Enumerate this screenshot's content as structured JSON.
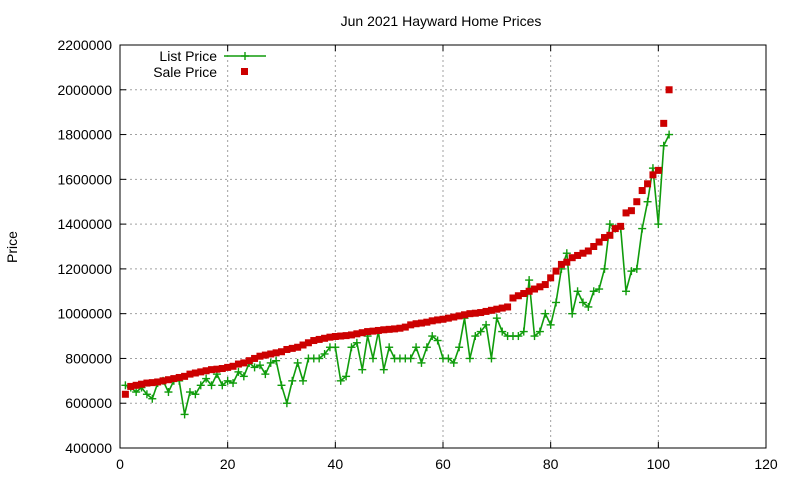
{
  "chart_data": {
    "type": "line",
    "title": "Jun 2021 Hayward Home Prices",
    "xlabel": "",
    "ylabel": "Price",
    "xlim": [
      0,
      120
    ],
    "ylim": [
      400000,
      2200000
    ],
    "x_ticks": [
      "0",
      "20",
      "40",
      "60",
      "80",
      "100",
      "120"
    ],
    "y_ticks": [
      "400000",
      "600000",
      "800000",
      "1000000",
      "1200000",
      "1400000",
      "1600000",
      "1800000",
      "2000000",
      "2200000"
    ],
    "grid": true,
    "legend_position": "top-left",
    "series": [
      {
        "name": "List Price",
        "style": "line-points",
        "color": "#109c0c",
        "x": [
          1,
          2,
          3,
          4,
          5,
          6,
          7,
          8,
          9,
          10,
          11,
          12,
          13,
          14,
          15,
          16,
          17,
          18,
          19,
          20,
          21,
          22,
          23,
          24,
          25,
          26,
          27,
          28,
          29,
          30,
          31,
          32,
          33,
          34,
          35,
          36,
          37,
          38,
          39,
          40,
          41,
          42,
          43,
          44,
          45,
          46,
          47,
          48,
          49,
          50,
          51,
          52,
          53,
          54,
          55,
          56,
          57,
          58,
          59,
          60,
          61,
          62,
          63,
          64,
          65,
          66,
          67,
          68,
          69,
          70,
          71,
          72,
          73,
          74,
          75,
          76,
          77,
          78,
          79,
          80,
          81,
          82,
          83,
          84,
          85,
          86,
          87,
          88,
          89,
          90,
          91,
          92,
          93,
          94,
          95,
          96,
          97,
          98,
          99,
          100,
          101,
          102
        ],
        "values": [
          680000,
          670000,
          650000,
          670000,
          640000,
          620000,
          690000,
          700000,
          650000,
          700000,
          700000,
          550000,
          650000,
          640000,
          680000,
          710000,
          680000,
          730000,
          680000,
          700000,
          690000,
          740000,
          720000,
          780000,
          760000,
          770000,
          730000,
          780000,
          790000,
          680000,
          600000,
          700000,
          780000,
          700000,
          800000,
          800000,
          800000,
          820000,
          850000,
          850000,
          700000,
          720000,
          850000,
          870000,
          750000,
          900000,
          800000,
          920000,
          750000,
          850000,
          800000,
          800000,
          800000,
          800000,
          850000,
          780000,
          850000,
          900000,
          880000,
          800000,
          800000,
          780000,
          850000,
          980000,
          800000,
          900000,
          920000,
          950000,
          800000,
          980000,
          920000,
          900000,
          900000,
          900000,
          920000,
          1150000,
          900000,
          920000,
          1000000,
          950000,
          1050000,
          1200000,
          1270000,
          1000000,
          1100000,
          1050000,
          1030000,
          1100000,
          1110000,
          1200000,
          1400000,
          1380000,
          1380000,
          1100000,
          1190000,
          1200000,
          1380000,
          1500000,
          1650000,
          1400000,
          1750000,
          1800000
        ]
      },
      {
        "name": "Sale Price",
        "style": "points",
        "color": "#cc0000",
        "x": [
          1,
          2,
          3,
          4,
          5,
          6,
          7,
          8,
          9,
          10,
          11,
          12,
          13,
          14,
          15,
          16,
          17,
          18,
          19,
          20,
          21,
          22,
          23,
          24,
          25,
          26,
          27,
          28,
          29,
          30,
          31,
          32,
          33,
          34,
          35,
          36,
          37,
          38,
          39,
          40,
          41,
          42,
          43,
          44,
          45,
          46,
          47,
          48,
          49,
          50,
          51,
          52,
          53,
          54,
          55,
          56,
          57,
          58,
          59,
          60,
          61,
          62,
          63,
          64,
          65,
          66,
          67,
          68,
          69,
          70,
          71,
          72,
          73,
          74,
          75,
          76,
          77,
          78,
          79,
          80,
          81,
          82,
          83,
          84,
          85,
          86,
          87,
          88,
          89,
          90,
          91,
          92,
          93,
          94,
          95,
          96,
          97,
          98,
          99,
          100,
          101,
          102
        ],
        "values": [
          640000,
          675000,
          680000,
          685000,
          690000,
          692000,
          695000,
          700000,
          705000,
          710000,
          715000,
          720000,
          730000,
          735000,
          740000,
          745000,
          750000,
          752000,
          755000,
          760000,
          765000,
          775000,
          780000,
          790000,
          800000,
          810000,
          815000,
          820000,
          825000,
          830000,
          840000,
          845000,
          850000,
          860000,
          870000,
          880000,
          885000,
          890000,
          895000,
          898000,
          900000,
          902000,
          905000,
          910000,
          915000,
          920000,
          922000,
          925000,
          928000,
          930000,
          932000,
          935000,
          940000,
          950000,
          955000,
          958000,
          962000,
          968000,
          972000,
          975000,
          980000,
          985000,
          990000,
          995000,
          1000000,
          1002000,
          1005000,
          1010000,
          1015000,
          1020000,
          1025000,
          1030000,
          1070000,
          1080000,
          1090000,
          1100000,
          1110000,
          1120000,
          1130000,
          1160000,
          1190000,
          1220000,
          1230000,
          1250000,
          1260000,
          1270000,
          1280000,
          1300000,
          1320000,
          1340000,
          1350000,
          1380000,
          1390000,
          1450000,
          1460000,
          1500000,
          1550000,
          1580000,
          1620000,
          1640000,
          1850000,
          2000000
        ]
      }
    ]
  }
}
